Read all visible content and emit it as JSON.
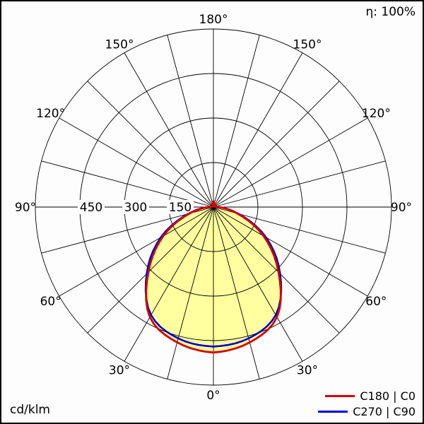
{
  "header": {
    "efficiency": "η: 100%"
  },
  "footer": {
    "unit": "cd/klm"
  },
  "legend": {
    "items": [
      {
        "label": "C180 | C0",
        "color": "#d40000"
      },
      {
        "label": "C270 | C90",
        "color": "#0000cc"
      }
    ]
  },
  "chart_data": {
    "type": "line",
    "layout": "polar",
    "description": "Polar luminous intensity distribution curve (photometric diagram), 0° at nadir (bottom), 180° at zenith (top), curves mirrored left/right",
    "radial_unit": "cd/klm",
    "radial_max": 600,
    "radial_ticks": [
      150,
      300,
      450
    ],
    "radial_tick_labels": [
      "150",
      "300",
      "450"
    ],
    "grid_angle_step_deg": 15,
    "angle_ticks": [
      {
        "deg": 0,
        "label": "0°"
      },
      {
        "deg": 30,
        "label": "30°"
      },
      {
        "deg": 60,
        "label": "60°"
      },
      {
        "deg": 90,
        "label": "90°"
      },
      {
        "deg": 120,
        "label": "120°"
      },
      {
        "deg": 150,
        "label": "150°"
      },
      {
        "deg": 180,
        "label": "180°"
      }
    ],
    "efficiency": "η: 100%",
    "fill_color": "#ffffa0",
    "grid_color": "#000000",
    "series": [
      {
        "name": "C180 | C0",
        "color": "#d40000",
        "gamma_deg": [
          0,
          15,
          30,
          45,
          60,
          75,
          90,
          105,
          120,
          135,
          150,
          165,
          180
        ],
        "values_cd_per_klm": [
          490,
          472,
          428,
          310,
          195,
          83,
          18,
          6,
          4,
          4,
          5,
          8,
          20
        ]
      },
      {
        "name": "C270 | C90",
        "color": "#0000cc",
        "gamma_deg": [
          0,
          15,
          30,
          45,
          60,
          75,
          90,
          105,
          120,
          135,
          150,
          165,
          180
        ],
        "values_cd_per_klm": [
          470,
          458,
          420,
          318,
          205,
          88,
          18,
          6,
          4,
          4,
          5,
          8,
          18
        ]
      }
    ]
  }
}
